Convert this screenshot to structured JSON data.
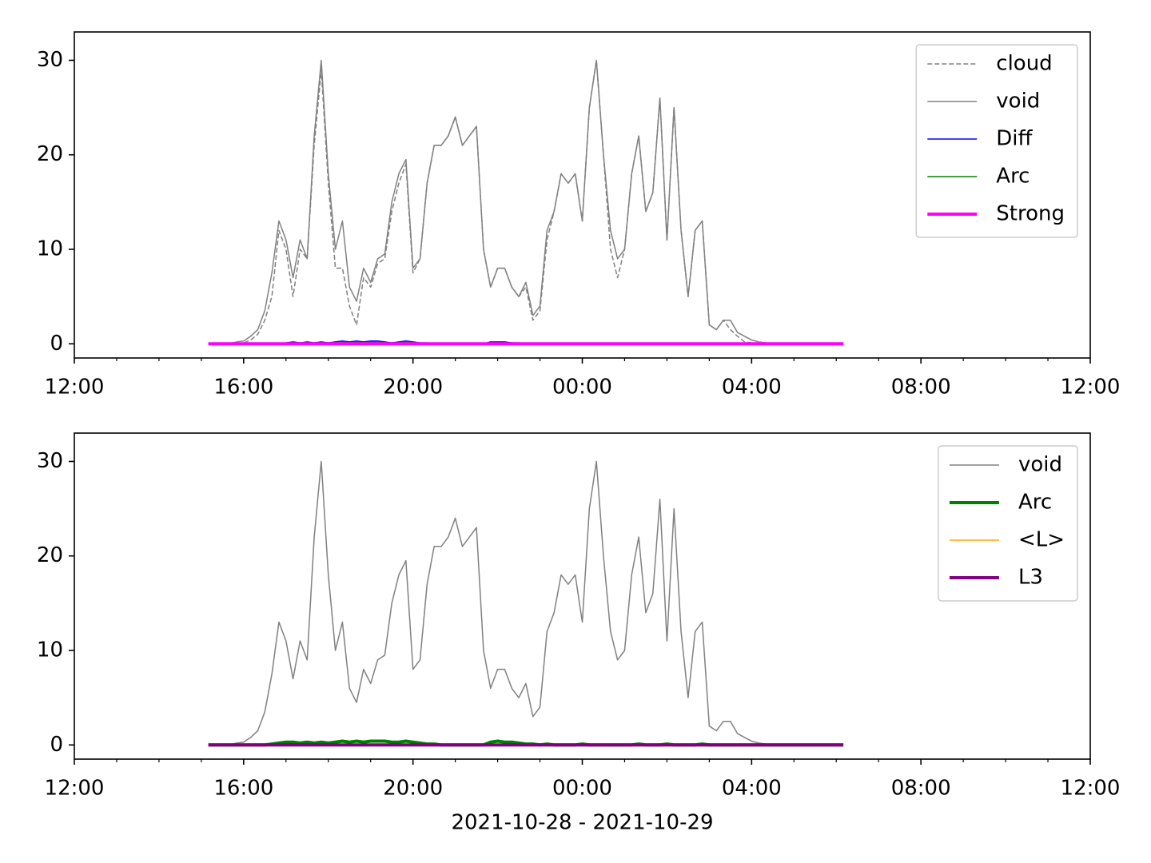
{
  "chart_data": [
    {
      "type": "line",
      "legend": "upper right",
      "xlim": [
        "12:00",
        "12:00"
      ],
      "xticks": [
        "12:00",
        "16:00",
        "20:00",
        "00:00",
        "04:00",
        "08:00",
        "12:00"
      ],
      "xminorticks": [
        "13:00",
        "14:00",
        "15:00",
        "17:00",
        "18:00",
        "19:00",
        "21:00",
        "22:00",
        "23:00",
        "01:00",
        "02:00",
        "03:00",
        "05:00",
        "06:00",
        "07:00",
        "09:00",
        "10:00",
        "11:00"
      ],
      "ylim": [
        -1.5,
        33
      ],
      "yticks": [
        0,
        10,
        20,
        30
      ],
      "x": [
        "15:10",
        "15:20",
        "15:30",
        "15:40",
        "15:50",
        "16:00",
        "16:10",
        "16:20",
        "16:30",
        "16:40",
        "16:50",
        "17:00",
        "17:10",
        "17:20",
        "17:30",
        "17:40",
        "17:50",
        "18:00",
        "18:10",
        "18:20",
        "18:30",
        "18:40",
        "18:50",
        "19:00",
        "19:10",
        "19:20",
        "19:30",
        "19:40",
        "19:50",
        "20:00",
        "20:10",
        "20:20",
        "20:30",
        "20:40",
        "20:50",
        "21:00",
        "21:10",
        "21:20",
        "21:30",
        "21:40",
        "21:50",
        "22:00",
        "22:10",
        "22:20",
        "22:30",
        "22:40",
        "22:50",
        "23:00",
        "23:10",
        "23:20",
        "23:30",
        "23:40",
        "23:50",
        "00:00",
        "00:10",
        "00:20",
        "00:30",
        "00:40",
        "00:50",
        "01:00",
        "01:10",
        "01:20",
        "01:30",
        "01:40",
        "01:50",
        "02:00",
        "02:10",
        "02:20",
        "02:30",
        "02:40",
        "02:50",
        "03:00",
        "03:10",
        "03:20",
        "03:30",
        "03:40",
        "03:50",
        "04:00",
        "04:10",
        "04:20",
        "04:30",
        "04:40",
        "04:50",
        "05:00",
        "05:10",
        "05:20",
        "05:30",
        "05:40",
        "05:50",
        "06:00",
        "06:10"
      ],
      "series": [
        {
          "name": "cloud",
          "color": "#808080",
          "style": "dashed",
          "linewidth": 1.5,
          "values": [
            0,
            0,
            0,
            0,
            0,
            0.1,
            0.4,
            1,
            2.5,
            5,
            12,
            10,
            5,
            10,
            9,
            21,
            29,
            17,
            8,
            8,
            4,
            2,
            7,
            6,
            8.5,
            9,
            14,
            17,
            19,
            7.5,
            9,
            17,
            21,
            21,
            22,
            24,
            21,
            22,
            23,
            10,
            6,
            8,
            8,
            6,
            5,
            6,
            2.5,
            3.5,
            11,
            14,
            18,
            17,
            18,
            13,
            25,
            30,
            20,
            10,
            7,
            10,
            18,
            22,
            14,
            16,
            26,
            11,
            25,
            12,
            5,
            12,
            13,
            2,
            1.5,
            2.5,
            1.5,
            0.8,
            0.2,
            0.1,
            0.1,
            0,
            0,
            0,
            0,
            0,
            0,
            0,
            0,
            0,
            0,
            0,
            0
          ]
        },
        {
          "name": "void",
          "color": "#808080",
          "style": "solid",
          "linewidth": 1.5,
          "values": [
            0,
            0,
            0,
            0,
            0.2,
            0.3,
            0.8,
            1.5,
            3.5,
            7.5,
            13,
            11,
            7,
            11,
            9,
            22,
            30,
            18,
            10,
            13,
            6,
            4.5,
            8,
            6.5,
            9,
            9.5,
            15,
            18,
            19.5,
            8,
            9,
            17,
            21,
            21,
            22,
            24,
            21,
            22,
            23,
            10,
            6,
            8,
            8,
            6,
            5,
            6.5,
            3,
            4,
            12,
            14,
            18,
            17,
            18,
            13,
            25,
            30,
            20,
            12,
            9,
            10,
            18,
            22,
            14,
            16,
            26,
            11,
            25,
            12,
            5,
            12,
            13,
            2,
            1.5,
            2.5,
            2.5,
            1.2,
            0.8,
            0.4,
            0.2,
            0.1,
            0,
            0,
            0,
            0,
            0,
            0,
            0,
            0,
            0,
            0,
            0
          ]
        },
        {
          "name": "Diff",
          "color": "#0000ff",
          "style": "solid",
          "linewidth": 1.5,
          "values": [
            0,
            0,
            0,
            0,
            0,
            0,
            0,
            0,
            0,
            0,
            0,
            0.1,
            0.2,
            0.1,
            0.2,
            0.1,
            0.2,
            0.1,
            0.2,
            0.3,
            0.2,
            0.3,
            0.2,
            0.3,
            0.3,
            0.2,
            0.1,
            0.2,
            0.3,
            0.2,
            0.1,
            0.1,
            0,
            0,
            0,
            0,
            0,
            0,
            0,
            0,
            0.2,
            0.2,
            0.2,
            0.1,
            0.1,
            0,
            0,
            0,
            0,
            0,
            0,
            0,
            0,
            0,
            0,
            0,
            0,
            0,
            0,
            0,
            0,
            0,
            0,
            0,
            0,
            0,
            0,
            0,
            0,
            0,
            0,
            0,
            0,
            0,
            0,
            0,
            0,
            0,
            0,
            0,
            0,
            0,
            0,
            0,
            0,
            0,
            0,
            0,
            0,
            0,
            0
          ]
        },
        {
          "name": "Arc",
          "color": "#008000",
          "style": "solid",
          "linewidth": 1.5,
          "values": [
            0,
            0,
            0,
            0,
            0,
            0,
            0,
            0,
            0,
            0,
            0,
            0.1,
            0.1,
            0.1,
            0.1,
            0.1,
            0.1,
            0.1,
            0.1,
            0.2,
            0.1,
            0.2,
            0.1,
            0.2,
            0.2,
            0.1,
            0.1,
            0.1,
            0.2,
            0.1,
            0.1,
            0,
            0,
            0,
            0,
            0,
            0,
            0,
            0,
            0,
            0.1,
            0.1,
            0.1,
            0.1,
            0,
            0,
            0,
            0,
            0,
            0,
            0,
            0,
            0,
            0,
            0,
            0,
            0,
            0,
            0,
            0,
            0,
            0,
            0,
            0,
            0,
            0,
            0,
            0,
            0,
            0,
            0,
            0,
            0,
            0,
            0,
            0,
            0,
            0,
            0,
            0,
            0,
            0,
            0,
            0,
            0,
            0,
            0,
            0,
            0,
            0,
            0
          ]
        },
        {
          "name": "Strong",
          "color": "#ff00ff",
          "style": "solid",
          "linewidth": 4,
          "values": [
            0,
            0,
            0,
            0,
            0,
            0,
            0,
            0,
            0,
            0,
            0,
            0,
            0,
            0,
            0,
            0,
            0,
            0,
            0,
            0,
            0,
            0,
            0,
            0,
            0,
            0,
            0,
            0,
            0,
            0,
            0,
            0,
            0,
            0,
            0,
            0,
            0,
            0,
            0,
            0,
            0,
            0,
            0,
            0,
            0,
            0,
            0,
            0,
            0,
            0,
            0,
            0,
            0,
            0,
            0,
            0,
            0,
            0,
            0,
            0,
            0,
            0,
            0,
            0,
            0,
            0,
            0,
            0,
            0,
            0,
            0,
            0,
            0,
            0,
            0,
            0,
            0,
            0,
            0,
            0,
            0,
            0,
            0,
            0,
            0,
            0,
            0,
            0,
            0,
            0,
            0
          ]
        }
      ]
    },
    {
      "type": "line",
      "legend": "upper right",
      "xlabel": "2021-10-28 - 2021-10-29",
      "xlim": [
        "12:00",
        "12:00"
      ],
      "xticks": [
        "12:00",
        "16:00",
        "20:00",
        "00:00",
        "04:00",
        "08:00",
        "12:00"
      ],
      "xminorticks": [
        "13:00",
        "14:00",
        "15:00",
        "17:00",
        "18:00",
        "19:00",
        "21:00",
        "22:00",
        "23:00",
        "01:00",
        "02:00",
        "03:00",
        "05:00",
        "06:00",
        "07:00",
        "09:00",
        "10:00",
        "11:00"
      ],
      "ylim": [
        -1.5,
        33
      ],
      "yticks": [
        0,
        10,
        20,
        30
      ],
      "x": [
        "15:10",
        "15:20",
        "15:30",
        "15:40",
        "15:50",
        "16:00",
        "16:10",
        "16:20",
        "16:30",
        "16:40",
        "16:50",
        "17:00",
        "17:10",
        "17:20",
        "17:30",
        "17:40",
        "17:50",
        "18:00",
        "18:10",
        "18:20",
        "18:30",
        "18:40",
        "18:50",
        "19:00",
        "19:10",
        "19:20",
        "19:30",
        "19:40",
        "19:50",
        "20:00",
        "20:10",
        "20:20",
        "20:30",
        "20:40",
        "20:50",
        "21:00",
        "21:10",
        "21:20",
        "21:30",
        "21:40",
        "21:50",
        "22:00",
        "22:10",
        "22:20",
        "22:30",
        "22:40",
        "22:50",
        "23:00",
        "23:10",
        "23:20",
        "23:30",
        "23:40",
        "23:50",
        "00:00",
        "00:10",
        "00:20",
        "00:30",
        "00:40",
        "00:50",
        "01:00",
        "01:10",
        "01:20",
        "01:30",
        "01:40",
        "01:50",
        "02:00",
        "02:10",
        "02:20",
        "02:30",
        "02:40",
        "02:50",
        "03:00",
        "03:10",
        "03:20",
        "03:30",
        "03:40",
        "03:50",
        "04:00",
        "04:10",
        "04:20",
        "04:30",
        "04:40",
        "04:50",
        "05:00",
        "05:10",
        "05:20",
        "05:30",
        "05:40",
        "05:50",
        "06:00",
        "06:10"
      ],
      "series": [
        {
          "name": "void",
          "color": "#808080",
          "style": "solid",
          "linewidth": 1.5,
          "values": [
            0,
            0,
            0,
            0,
            0.2,
            0.3,
            0.8,
            1.5,
            3.5,
            7.5,
            13,
            11,
            7,
            11,
            9,
            22,
            30,
            18,
            10,
            13,
            6,
            4.5,
            8,
            6.5,
            9,
            9.5,
            15,
            18,
            19.5,
            8,
            9,
            17,
            21,
            21,
            22,
            24,
            21,
            22,
            23,
            10,
            6,
            8,
            8,
            6,
            5,
            6.5,
            3,
            4,
            12,
            14,
            18,
            17,
            18,
            13,
            25,
            30,
            20,
            12,
            9,
            10,
            18,
            22,
            14,
            16,
            26,
            11,
            25,
            12,
            5,
            12,
            13,
            2,
            1.5,
            2.5,
            2.5,
            1.2,
            0.8,
            0.4,
            0.2,
            0.1,
            0,
            0,
            0,
            0,
            0,
            0,
            0,
            0,
            0,
            0,
            0
          ]
        },
        {
          "name": "Arc",
          "color": "#008000",
          "style": "solid",
          "linewidth": 4,
          "values": [
            0,
            0,
            0,
            0,
            0,
            0,
            0,
            0,
            0,
            0.1,
            0.2,
            0.3,
            0.3,
            0.2,
            0.3,
            0.2,
            0.3,
            0.2,
            0.3,
            0.4,
            0.3,
            0.4,
            0.3,
            0.4,
            0.4,
            0.4,
            0.3,
            0.3,
            0.4,
            0.3,
            0.2,
            0.1,
            0.1,
            0,
            0,
            0,
            0,
            0,
            0,
            0,
            0.3,
            0.4,
            0.3,
            0.3,
            0.2,
            0.1,
            0.1,
            0,
            0.1,
            0,
            0,
            0,
            0,
            0.1,
            0,
            0,
            0,
            0,
            0,
            0,
            0,
            0.1,
            0,
            0,
            0,
            0.1,
            0,
            0,
            0,
            0,
            0.1,
            0,
            0,
            0,
            0,
            0,
            0,
            0,
            0,
            0,
            0,
            0,
            0,
            0,
            0,
            0,
            0,
            0,
            0,
            0,
            0
          ]
        },
        {
          "name": "<L>",
          "color": "#ffa500",
          "style": "solid",
          "linewidth": 1.5,
          "values": [
            0,
            0,
            0,
            0,
            0,
            0,
            0,
            0,
            0,
            0,
            0,
            0,
            0,
            0,
            0,
            0,
            0,
            0,
            0,
            0,
            0,
            0,
            0,
            0,
            0,
            0,
            0,
            0,
            0,
            0,
            0,
            0,
            0,
            0,
            0,
            0,
            0,
            0,
            0,
            0,
            0,
            0,
            0,
            0,
            0,
            0,
            0,
            0,
            0,
            0,
            0,
            0,
            0,
            0,
            0,
            0,
            0,
            0,
            0,
            0,
            0,
            0,
            0,
            0,
            0,
            0,
            0,
            0,
            0,
            0,
            0,
            0,
            0,
            0,
            0,
            0,
            0,
            0,
            0,
            0,
            0,
            0,
            0,
            0,
            0,
            0,
            0,
            0,
            0,
            0,
            0
          ]
        },
        {
          "name": "L3",
          "color": "#800080",
          "style": "solid",
          "linewidth": 4,
          "values": [
            0,
            0,
            0,
            0,
            0,
            0,
            0,
            0,
            0,
            0,
            0,
            0,
            0,
            0,
            0,
            0,
            0,
            0,
            0,
            0,
            0,
            0,
            0,
            0,
            0,
            0,
            0,
            0,
            0,
            0,
            0,
            0,
            0,
            0,
            0,
            0,
            0,
            0,
            0,
            0,
            0,
            0,
            0,
            0,
            0,
            0,
            0,
            0,
            0,
            0,
            0,
            0,
            0,
            0,
            0,
            0,
            0,
            0,
            0,
            0,
            0,
            0,
            0,
            0,
            0,
            0,
            0,
            0,
            0,
            0,
            0,
            0,
            0,
            0,
            0,
            0,
            0,
            0,
            0,
            0,
            0,
            0,
            0,
            0,
            0,
            0,
            0,
            0,
            0,
            0,
            0
          ]
        }
      ]
    }
  ]
}
